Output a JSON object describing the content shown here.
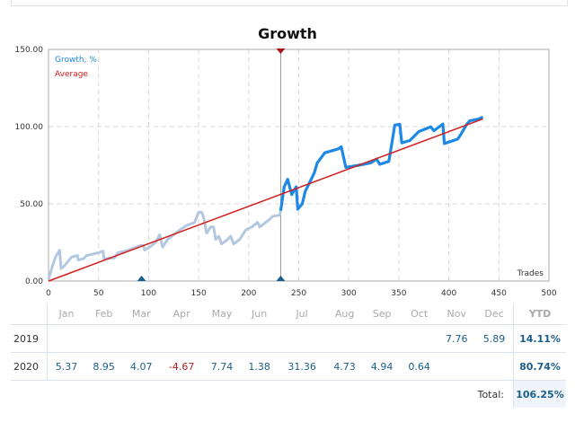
{
  "chart_data": {
    "type": "line",
    "title": "Growth",
    "xlabel": "Trades",
    "ylabel": "",
    "xlim": [
      0,
      500
    ],
    "ylim": [
      0,
      150
    ],
    "x_ticks": [
      "0",
      "50",
      "100",
      "150",
      "200",
      "250",
      "300",
      "350",
      "400",
      "450",
      "500"
    ],
    "y_ticks": [
      "0.00",
      "50.00",
      "100.00",
      "150.00"
    ],
    "grid": true,
    "legend_placement": "top-left",
    "series": [
      {
        "name": "Growth, %",
        "color": "#1e88e5",
        "faded_color": "#b3c8e0",
        "faded_until": 232,
        "points": [
          [
            0,
            1
          ],
          [
            4,
            10
          ],
          [
            7,
            15.5
          ],
          [
            11,
            20
          ],
          [
            12.6,
            8
          ],
          [
            15.6,
            9.7
          ],
          [
            23,
            15.5
          ],
          [
            29,
            16.5
          ],
          [
            29.6,
            13.6
          ],
          [
            35,
            14.5
          ],
          [
            38,
            16.5
          ],
          [
            44,
            17.4
          ],
          [
            50,
            18.4
          ],
          [
            54.5,
            19.4
          ],
          [
            55.4,
            14.5
          ],
          [
            66,
            15
          ],
          [
            69.5,
            18.4
          ],
          [
            77,
            19.4
          ],
          [
            92,
            23
          ],
          [
            95,
            23
          ],
          [
            96,
            20
          ],
          [
            101,
            22
          ],
          [
            107,
            25
          ],
          [
            111,
            30
          ],
          [
            114,
            22
          ],
          [
            119,
            27
          ],
          [
            125,
            30
          ],
          [
            131,
            33
          ],
          [
            138,
            36
          ],
          [
            146,
            38
          ],
          [
            150,
            44.6
          ],
          [
            153,
            44.6
          ],
          [
            155,
            41
          ],
          [
            158,
            31
          ],
          [
            162,
            35
          ],
          [
            165,
            35
          ],
          [
            167,
            27
          ],
          [
            170,
            29
          ],
          [
            173,
            24
          ],
          [
            179,
            27
          ],
          [
            182,
            29
          ],
          [
            185,
            24
          ],
          [
            191,
            27
          ],
          [
            197,
            33
          ],
          [
            203,
            35
          ],
          [
            209,
            38
          ],
          [
            211,
            35
          ],
          [
            215,
            37
          ],
          [
            221,
            40
          ],
          [
            224,
            42
          ],
          [
            231,
            42.6
          ],
          [
            232,
            45.5
          ],
          [
            235.5,
            61
          ],
          [
            239,
            65.9
          ],
          [
            243,
            56
          ],
          [
            247.5,
            61
          ],
          [
            249,
            46.5
          ],
          [
            253.5,
            50
          ],
          [
            256.5,
            58
          ],
          [
            261,
            64
          ],
          [
            265.5,
            70
          ],
          [
            268.5,
            76.5
          ],
          [
            276,
            83
          ],
          [
            289.5,
            85.6
          ],
          [
            292.5,
            87
          ],
          [
            297,
            73.6
          ],
          [
            310,
            75
          ],
          [
            322,
            76.5
          ],
          [
            327.7,
            79
          ],
          [
            331,
            75.6
          ],
          [
            340,
            77.5
          ],
          [
            343,
            89
          ],
          [
            346,
            101
          ],
          [
            351,
            101.5
          ],
          [
            353,
            89.5
          ],
          [
            361,
            91
          ],
          [
            370,
            96.8
          ],
          [
            382,
            99.8
          ],
          [
            385,
            97.3
          ],
          [
            394,
            101.7
          ],
          [
            395.5,
            89
          ],
          [
            400,
            90
          ],
          [
            409,
            92
          ],
          [
            412,
            95
          ],
          [
            418,
            101.7
          ],
          [
            421,
            103.7
          ],
          [
            430,
            105
          ],
          [
            434,
            106.2
          ]
        ]
      },
      {
        "name": "Average",
        "color": "#d32020",
        "points": [
          [
            0,
            0
          ],
          [
            434,
            105
          ]
        ]
      }
    ],
    "markers": {
      "vertical_line_at": 232,
      "bottom_markers": [
        93,
        232
      ]
    }
  },
  "table": {
    "months": [
      "Jan",
      "Feb",
      "Mar",
      "Apr",
      "May",
      "Jun",
      "Jul",
      "Aug",
      "Sep",
      "Oct",
      "Nov",
      "Dec"
    ],
    "ytd_label": "YTD",
    "rows": [
      {
        "year": "2019",
        "values": [
          "",
          "",
          "",
          "",
          "",
          "",
          "",
          "",
          "",
          "",
          "7.76",
          "5.89"
        ],
        "ytd": "14.11%"
      },
      {
        "year": "2020",
        "values": [
          "5.37",
          "8.95",
          "4.07",
          "-4.67",
          "7.74",
          "1.38",
          "31.36",
          "4.73",
          "4.94",
          "0.64",
          "",
          ""
        ],
        "ytd": "80.74%"
      }
    ],
    "total_label": "Total:",
    "total_value": "106.25%"
  }
}
